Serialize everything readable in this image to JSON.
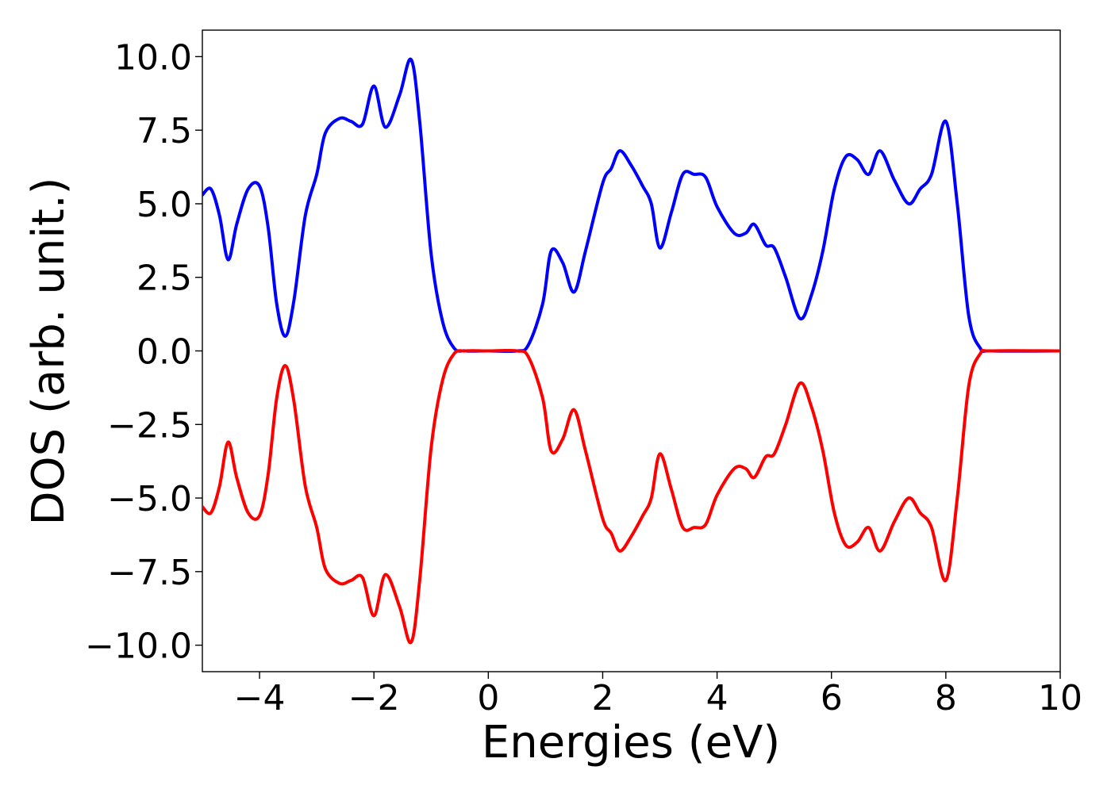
{
  "chart_data": {
    "type": "line",
    "xlabel": "Energies (eV)",
    "ylabel": "DOS (arb. unit.)",
    "xlim": [
      -5,
      10
    ],
    "ylim": [
      -10.9,
      10.9
    ],
    "x_ticks": [
      -4,
      -2,
      0,
      2,
      4,
      6,
      8,
      10
    ],
    "x_tick_labels": [
      "−4",
      "−2",
      "0",
      "2",
      "4",
      "6",
      "8",
      "10"
    ],
    "y_ticks": [
      10.0,
      7.5,
      5.0,
      2.5,
      0.0,
      -2.5,
      -5.0,
      -7.5,
      -10.0
    ],
    "y_tick_labels": [
      "10.0",
      "7.5",
      "5.0",
      "2.5",
      "0.0",
      "−2.5",
      "−5.0",
      "−7.5",
      "−10.0"
    ],
    "grid": false,
    "legend": "none",
    "series": [
      {
        "color": "#0000ff",
        "x": [
          -5.0,
          -4.85,
          -4.7,
          -4.55,
          -4.4,
          -4.2,
          -4.0,
          -3.85,
          -3.7,
          -3.55,
          -3.4,
          -3.2,
          -3.0,
          -2.85,
          -2.6,
          -2.4,
          -2.2,
          -2.0,
          -1.8,
          -1.55,
          -1.35,
          -1.2,
          -1.0,
          -0.8,
          -0.6,
          -0.4,
          0.0,
          0.5,
          0.7,
          0.95,
          1.1,
          1.3,
          1.5,
          1.7,
          2.0,
          2.15,
          2.3,
          2.5,
          2.7,
          2.85,
          3.0,
          3.2,
          3.4,
          3.6,
          3.8,
          4.0,
          4.3,
          4.5,
          4.65,
          4.85,
          5.0,
          5.2,
          5.45,
          5.65,
          5.85,
          6.05,
          6.25,
          6.45,
          6.65,
          6.85,
          7.1,
          7.35,
          7.55,
          7.75,
          8.0,
          8.2,
          8.4,
          8.6,
          8.8,
          10.0
        ],
        "y": [
          5.3,
          5.5,
          4.6,
          3.1,
          4.3,
          5.5,
          5.6,
          4.2,
          1.6,
          0.5,
          1.7,
          4.6,
          6.0,
          7.4,
          7.9,
          7.8,
          7.7,
          9.0,
          7.6,
          8.7,
          9.9,
          7.8,
          3.3,
          1.0,
          0.1,
          0.0,
          0.0,
          0.0,
          0.2,
          1.6,
          3.4,
          3.0,
          2.0,
          3.4,
          5.7,
          6.2,
          6.8,
          6.3,
          5.6,
          5.0,
          3.5,
          4.7,
          6.0,
          6.0,
          5.9,
          4.9,
          4.0,
          4.0,
          4.3,
          3.6,
          3.5,
          2.5,
          1.1,
          1.9,
          3.4,
          5.5,
          6.6,
          6.5,
          6.0,
          6.8,
          5.8,
          5.0,
          5.5,
          6.0,
          7.8,
          5.0,
          1.2,
          0.1,
          0.0,
          0.0
        ]
      },
      {
        "color": "#ff0000",
        "x": [
          -5.0,
          -4.85,
          -4.7,
          -4.55,
          -4.4,
          -4.2,
          -4.0,
          -3.85,
          -3.7,
          -3.55,
          -3.4,
          -3.2,
          -3.0,
          -2.85,
          -2.6,
          -2.4,
          -2.2,
          -2.0,
          -1.8,
          -1.55,
          -1.35,
          -1.2,
          -1.0,
          -0.8,
          -0.6,
          -0.4,
          0.0,
          0.5,
          0.7,
          0.95,
          1.1,
          1.3,
          1.5,
          1.7,
          2.0,
          2.15,
          2.3,
          2.5,
          2.7,
          2.85,
          3.0,
          3.2,
          3.4,
          3.6,
          3.8,
          4.0,
          4.3,
          4.5,
          4.65,
          4.85,
          5.0,
          5.2,
          5.45,
          5.65,
          5.85,
          6.05,
          6.25,
          6.45,
          6.65,
          6.85,
          7.1,
          7.35,
          7.55,
          7.75,
          8.0,
          8.2,
          8.4,
          8.6,
          8.8,
          10.0
        ],
        "y": [
          -5.3,
          -5.5,
          -4.6,
          -3.1,
          -4.3,
          -5.5,
          -5.6,
          -4.2,
          -1.6,
          -0.5,
          -1.7,
          -4.6,
          -6.0,
          -7.4,
          -7.9,
          -7.8,
          -7.7,
          -9.0,
          -7.6,
          -8.7,
          -9.9,
          -7.8,
          -3.3,
          -1.0,
          -0.1,
          0.0,
          0.0,
          0.0,
          -0.2,
          -1.6,
          -3.4,
          -3.0,
          -2.0,
          -3.4,
          -5.7,
          -6.2,
          -6.8,
          -6.3,
          -5.6,
          -5.0,
          -3.5,
          -4.7,
          -6.0,
          -6.0,
          -5.9,
          -4.9,
          -4.0,
          -4.0,
          -4.3,
          -3.6,
          -3.5,
          -2.5,
          -1.1,
          -1.9,
          -3.4,
          -5.5,
          -6.6,
          -6.5,
          -6.0,
          -6.8,
          -5.8,
          -5.0,
          -5.5,
          -6.0,
          -7.8,
          -5.0,
          -1.2,
          -0.1,
          0.0,
          0.0
        ]
      }
    ]
  }
}
